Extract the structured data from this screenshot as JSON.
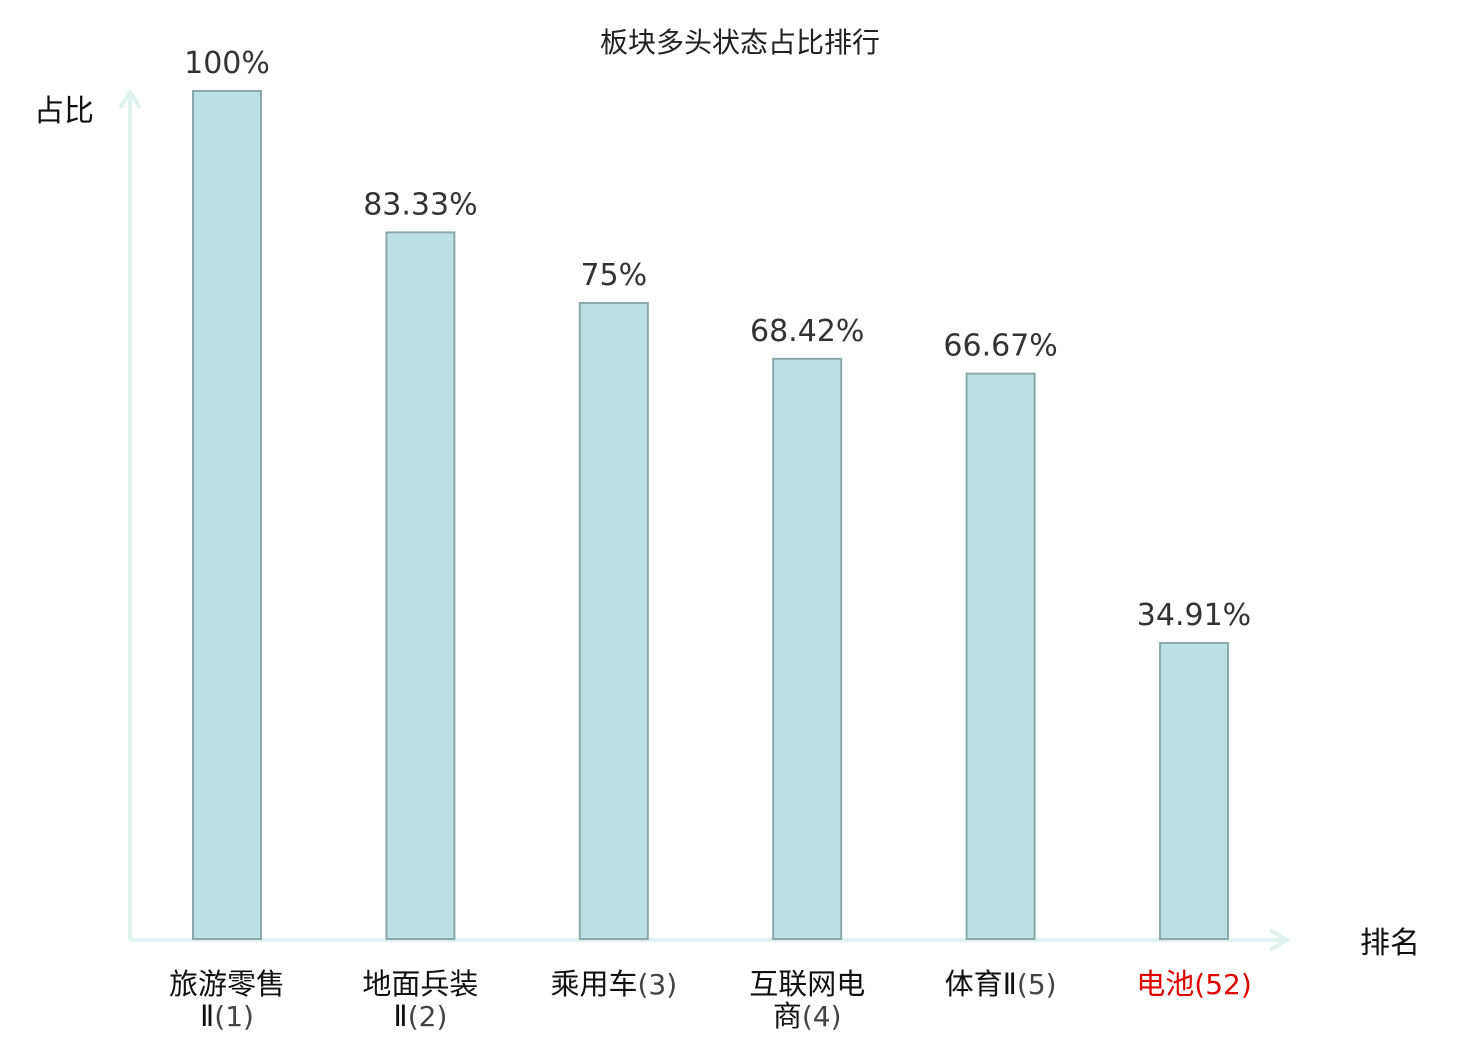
{
  "chart_data": {
    "type": "bar",
    "title": "板块多头状态占比排行",
    "ylabel": "占比",
    "xlabel": "排名",
    "ylim": [
      0,
      100
    ],
    "grid": false,
    "categories": [
      {
        "name": "旅游零售Ⅱ",
        "rank": "(1)",
        "highlight": false
      },
      {
        "name": "地面兵装Ⅱ",
        "rank": "(2)",
        "highlight": false
      },
      {
        "name": "乘用车",
        "rank": "(3)",
        "highlight": false
      },
      {
        "name": "互联网电商",
        "rank": "(4)",
        "highlight": false
      },
      {
        "name": "体育Ⅱ",
        "rank": "(5)",
        "highlight": false
      },
      {
        "name": "电池",
        "rank": "(52)",
        "highlight": true
      }
    ],
    "values": [
      100,
      83.33,
      75,
      68.42,
      66.67,
      34.91
    ],
    "value_labels": [
      "100%",
      "83.33%",
      "75%",
      "68.42%",
      "66.67%",
      "34.91%"
    ],
    "colors": {
      "bar_fill": "#bde0e3",
      "bar_stroke": "#8aa9ab",
      "axis": "#dff2ef",
      "highlight": "#e00000"
    }
  }
}
